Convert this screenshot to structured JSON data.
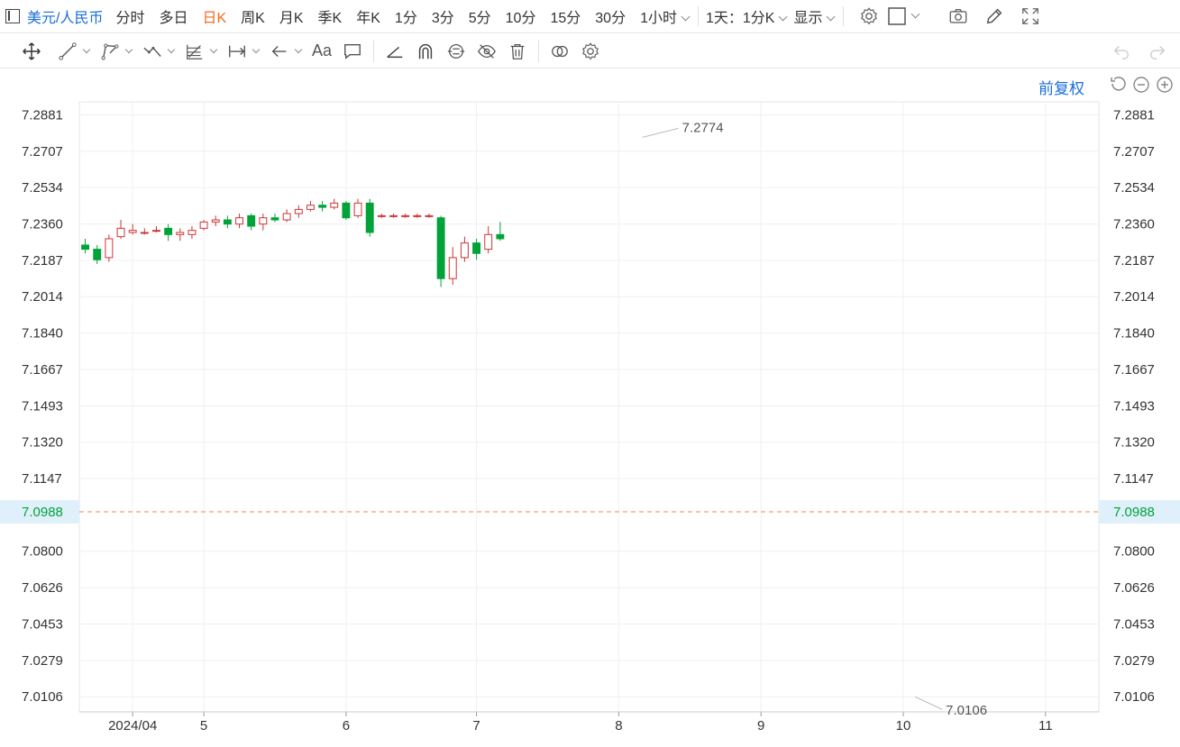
{
  "header": {
    "symbol": "美元/人民币",
    "periods": [
      {
        "label": "分时",
        "active": false
      },
      {
        "label": "多日",
        "active": false
      },
      {
        "label": "日K",
        "active": true
      },
      {
        "label": "周K",
        "active": false
      },
      {
        "label": "月K",
        "active": false
      },
      {
        "label": "季K",
        "active": false
      },
      {
        "label": "年K",
        "active": false
      },
      {
        "label": "1分",
        "active": false
      },
      {
        "label": "3分",
        "active": false
      },
      {
        "label": "5分",
        "active": false
      },
      {
        "label": "10分",
        "active": false
      },
      {
        "label": "15分",
        "active": false
      },
      {
        "label": "30分",
        "active": false
      }
    ],
    "interval_dropdown": "1小时",
    "multi_dropdown": "1天：1分K",
    "display_dropdown": "显示",
    "icons": [
      "settings-icon",
      "square-icon",
      "camera-icon",
      "pencil-icon",
      "fullscreen-icon"
    ]
  },
  "toolbar": {
    "tools": [
      "move-icon",
      "line-icon",
      "polyline-icon",
      "wave-icon",
      "fib-icon",
      "measure-icon",
      "arrow-icon",
      "text-tool",
      "comment-icon",
      "angle-icon",
      "arc-icon",
      "magnet-icon",
      "hide-icon",
      "trash-icon",
      "compare-icon",
      "gear-icon"
    ],
    "text_tool_label": "Aa",
    "undo": "undo-icon",
    "redo": "redo-icon"
  },
  "adjust_label": "前复权",
  "chart_data": {
    "type": "candlestick",
    "y_ticks": [
      "7.2881",
      "7.2707",
      "7.2534",
      "7.2360",
      "7.2187",
      "7.2014",
      "7.1840",
      "7.1667",
      "7.1493",
      "7.1320",
      "7.1147",
      "7.0988",
      "7.0800",
      "7.0626",
      "7.0453",
      "7.0279",
      "7.0106"
    ],
    "ylim": [
      7.0034,
      7.2943
    ],
    "x_labels": [
      {
        "label": "2024/04",
        "index": 4
      },
      {
        "label": "5",
        "index": 10
      },
      {
        "label": "6",
        "index": 22
      },
      {
        "label": "7",
        "index": 33
      },
      {
        "label": "8",
        "index": 45
      },
      {
        "label": "9",
        "index": 57
      },
      {
        "label": "10",
        "index": 69
      },
      {
        "label": "11",
        "index": 81
      }
    ],
    "up_color": "#d03434",
    "down_color": "#00a339",
    "current_price": "7.0988",
    "high_annotation": {
      "label": "7.2774",
      "index": 47,
      "value": 7.2774
    },
    "low_annotation": {
      "label": "7.0106",
      "index": 70,
      "value": 7.0106
    },
    "candles": [
      [
        7.226,
        7.224,
        7.229,
        7.222
      ],
      [
        7.224,
        7.219,
        7.226,
        7.217
      ],
      [
        7.22,
        7.229,
        7.231,
        7.218
      ],
      [
        7.23,
        7.234,
        7.238,
        7.229
      ],
      [
        7.232,
        7.233,
        7.236,
        7.231
      ],
      [
        7.232,
        7.232,
        7.234,
        7.231
      ],
      [
        7.233,
        7.233,
        7.235,
        7.232
      ],
      [
        7.234,
        7.231,
        7.236,
        7.228
      ],
      [
        7.231,
        7.232,
        7.234,
        7.228
      ],
      [
        7.231,
        7.233,
        7.235,
        7.229
      ],
      [
        7.234,
        7.237,
        7.238,
        7.233
      ],
      [
        7.237,
        7.238,
        7.24,
        7.235
      ],
      [
        7.238,
        7.236,
        7.24,
        7.234
      ],
      [
        7.236,
        7.239,
        7.241,
        7.234
      ],
      [
        7.24,
        7.235,
        7.241,
        7.233
      ],
      [
        7.236,
        7.239,
        7.241,
        7.233
      ],
      [
        7.239,
        7.238,
        7.241,
        7.237
      ],
      [
        7.238,
        7.241,
        7.243,
        7.237
      ],
      [
        7.241,
        7.243,
        7.245,
        7.239
      ],
      [
        7.243,
        7.245,
        7.247,
        7.242
      ],
      [
        7.245,
        7.244,
        7.247,
        7.242
      ],
      [
        7.244,
        7.246,
        7.248,
        7.243
      ],
      [
        7.246,
        7.239,
        7.247,
        7.238
      ],
      [
        7.24,
        7.246,
        7.248,
        7.239
      ],
      [
        7.246,
        7.232,
        7.248,
        7.23
      ],
      [
        7.24,
        7.24,
        7.241,
        7.239
      ],
      [
        7.24,
        7.24,
        7.241,
        7.239
      ],
      [
        7.24,
        7.24,
        7.241,
        7.239
      ],
      [
        7.24,
        7.24,
        7.241,
        7.239
      ],
      [
        7.24,
        7.24,
        7.241,
        7.239
      ],
      [
        7.239,
        7.21,
        7.24,
        7.206
      ],
      [
        7.21,
        7.22,
        7.225,
        7.207
      ],
      [
        7.22,
        7.227,
        7.23,
        7.218
      ],
      [
        7.227,
        7.222,
        7.229,
        7.219
      ],
      [
        7.224,
        7.231,
        7.235,
        7.222
      ],
      [
        7.231,
        7.229,
        7.237,
        7.228
      ]
    ]
  }
}
